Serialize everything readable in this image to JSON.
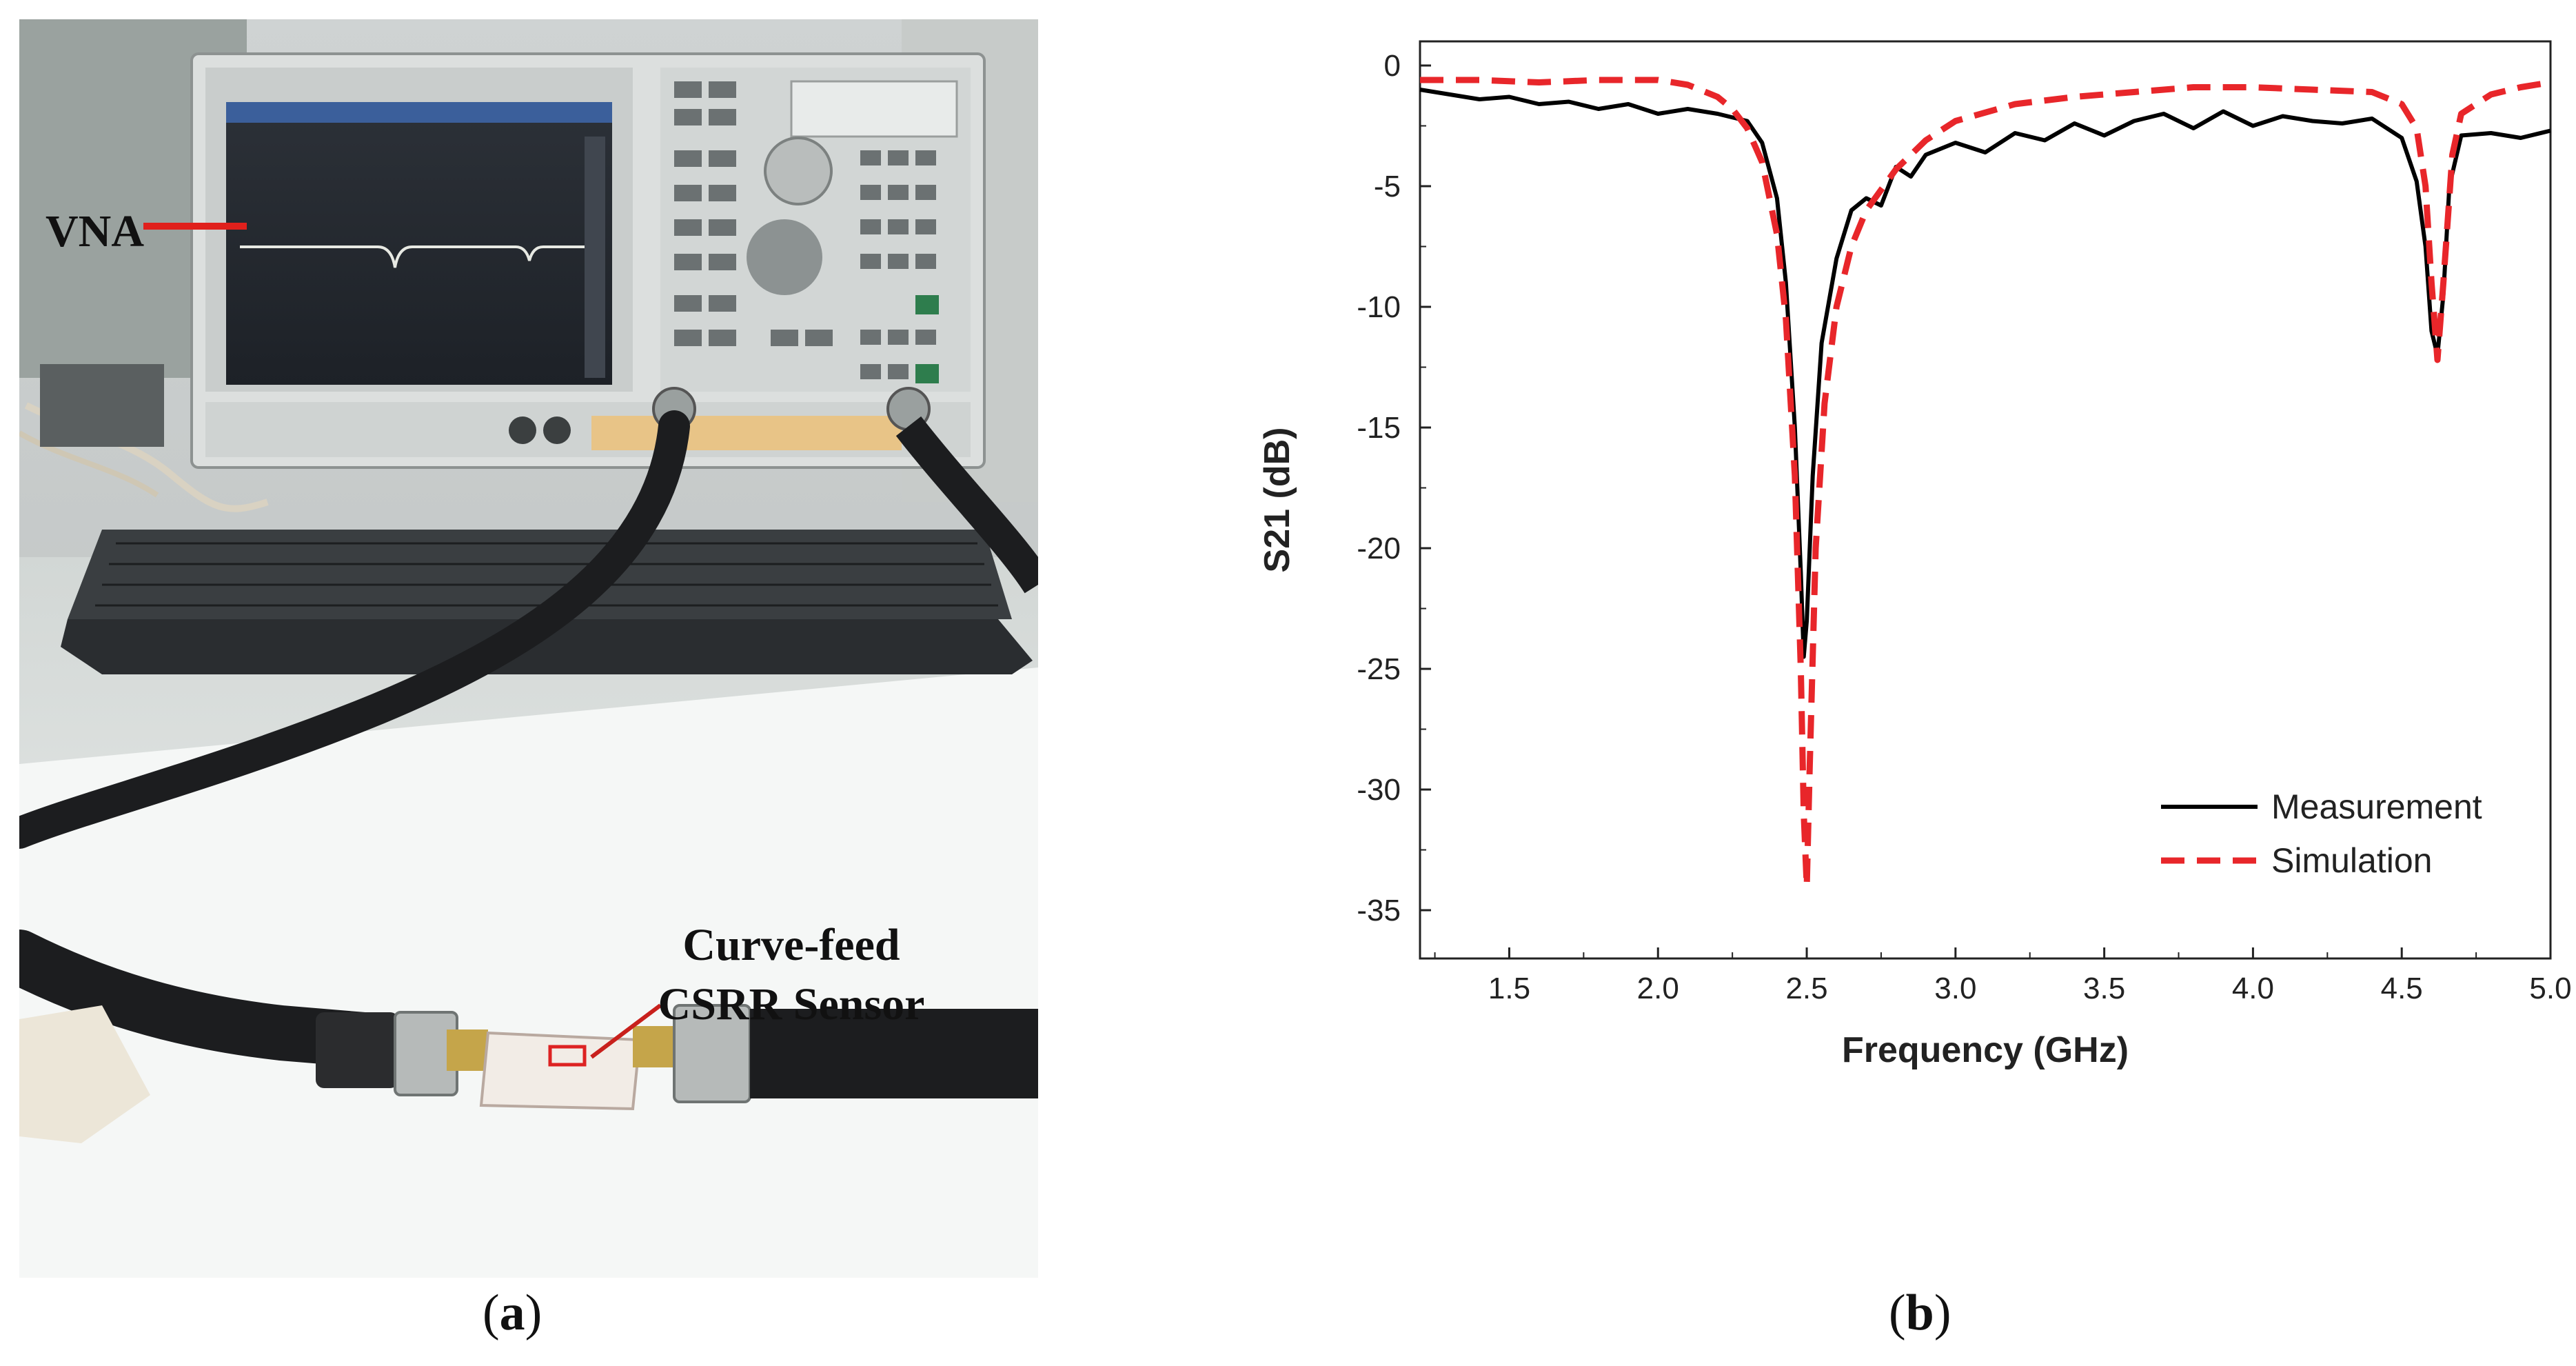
{
  "panel_a": {
    "vna_label": "VNA",
    "sensor_label_line1": "Curve-feed",
    "sensor_label_line2": "CSRR Sensor",
    "caption_open": "(",
    "caption_letter": "a",
    "caption_close": ")"
  },
  "panel_b": {
    "caption_open": "(",
    "caption_letter": "b",
    "caption_close": ")"
  },
  "chart_data": {
    "type": "line",
    "title": "",
    "xlabel": "Frequency (GHz)",
    "ylabel": "S21 (dB)",
    "xlim": [
      1.2,
      5.0
    ],
    "ylim": [
      -37,
      1
    ],
    "xticks": [
      1.5,
      2.0,
      2.5,
      3.0,
      3.5,
      4.0,
      4.5,
      5.0
    ],
    "xtick_labels": [
      "1.5",
      "2.0",
      "2.5",
      "3.0",
      "3.5",
      "4.0",
      "4.5",
      "5.0"
    ],
    "yticks": [
      0,
      -5,
      -10,
      -15,
      -20,
      -25,
      -30,
      -35
    ],
    "ytick_labels": [
      "0",
      "-5",
      "-10",
      "-15",
      "-20",
      "-25",
      "-30",
      "-35"
    ],
    "legend_position": "bottom-right",
    "grid": false,
    "series": [
      {
        "name": "Measurement",
        "color": "#000000",
        "style": "solid",
        "x": [
          1.2,
          1.3,
          1.4,
          1.5,
          1.6,
          1.7,
          1.8,
          1.9,
          2.0,
          2.1,
          2.2,
          2.3,
          2.35,
          2.4,
          2.43,
          2.46,
          2.48,
          2.49,
          2.5,
          2.52,
          2.55,
          2.6,
          2.65,
          2.7,
          2.75,
          2.8,
          2.85,
          2.9,
          3.0,
          3.1,
          3.2,
          3.3,
          3.4,
          3.5,
          3.6,
          3.7,
          3.8,
          3.9,
          4.0,
          4.1,
          4.2,
          4.3,
          4.4,
          4.5,
          4.55,
          4.58,
          4.6,
          4.62,
          4.64,
          4.66,
          4.7,
          4.8,
          4.9,
          5.0
        ],
        "y": [
          -1.0,
          -1.2,
          -1.4,
          -1.3,
          -1.6,
          -1.5,
          -1.8,
          -1.6,
          -2.0,
          -1.8,
          -2.0,
          -2.3,
          -3.2,
          -5.5,
          -9.0,
          -15.0,
          -21.0,
          -24.5,
          -23.0,
          -17.0,
          -11.5,
          -8.0,
          -6.0,
          -5.5,
          -5.8,
          -4.2,
          -4.6,
          -3.7,
          -3.2,
          -3.6,
          -2.8,
          -3.1,
          -2.4,
          -2.9,
          -2.3,
          -2.0,
          -2.6,
          -1.9,
          -2.5,
          -2.1,
          -2.3,
          -2.4,
          -2.2,
          -3.0,
          -4.8,
          -7.5,
          -11.0,
          -12.0,
          -9.5,
          -5.0,
          -2.9,
          -2.8,
          -3.0,
          -2.7
        ]
      },
      {
        "name": "Simulation",
        "color": "#e8262a",
        "style": "dashed",
        "x": [
          1.2,
          1.4,
          1.6,
          1.8,
          2.0,
          2.1,
          2.2,
          2.25,
          2.3,
          2.35,
          2.4,
          2.43,
          2.46,
          2.48,
          2.49,
          2.5,
          2.51,
          2.53,
          2.56,
          2.6,
          2.65,
          2.7,
          2.8,
          2.9,
          3.0,
          3.2,
          3.4,
          3.6,
          3.8,
          4.0,
          4.2,
          4.4,
          4.5,
          4.55,
          4.58,
          4.6,
          4.62,
          4.64,
          4.67,
          4.7,
          4.8,
          4.9,
          5.0
        ],
        "y": [
          -0.6,
          -0.6,
          -0.7,
          -0.6,
          -0.6,
          -0.8,
          -1.3,
          -1.8,
          -2.6,
          -4.0,
          -7.0,
          -10.5,
          -17.0,
          -25.0,
          -31.0,
          -34.0,
          -29.0,
          -20.0,
          -14.0,
          -10.0,
          -7.5,
          -6.0,
          -4.3,
          -3.1,
          -2.3,
          -1.6,
          -1.3,
          -1.1,
          -0.9,
          -0.9,
          -1.0,
          -1.1,
          -1.6,
          -2.6,
          -5.0,
          -9.0,
          -12.2,
          -9.0,
          -3.7,
          -2.0,
          -1.2,
          -0.9,
          -0.7
        ]
      }
    ]
  }
}
